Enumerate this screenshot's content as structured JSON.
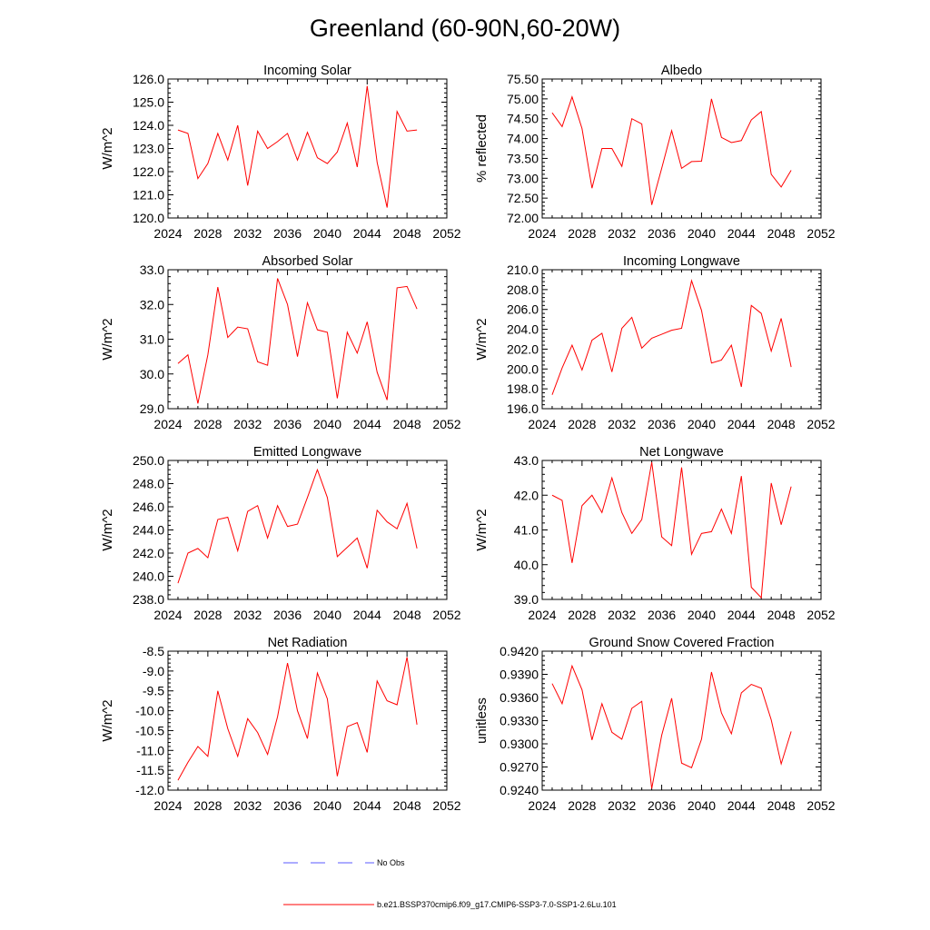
{
  "figure": {
    "title": "Greenland (60-90N,60-20W)"
  },
  "legend": {
    "entries": [
      {
        "label": "No Obs",
        "color": "#5a5aff",
        "style": "dashed"
      },
      {
        "label": "b.e21.BSSP370cmip6.f09_g17.CMIP6-SSP3-7.0-SSP1-2.6Lu.101",
        "color": "#ff0000",
        "style": "solid"
      }
    ]
  },
  "chart_data": [
    {
      "type": "line",
      "title": "Incoming Solar",
      "ylabel": "W/m^2",
      "xlim": [
        2024,
        2052
      ],
      "ylim": [
        120.0,
        126.0
      ],
      "x_ticks": [
        2024,
        2028,
        2032,
        2036,
        2040,
        2044,
        2048,
        2052
      ],
      "y_ticks": [
        "120.0",
        "121.0",
        "122.0",
        "123.0",
        "124.0",
        "125.0",
        "126.0"
      ],
      "series": [
        {
          "color": "#ff0000",
          "x": [
            2025,
            2026,
            2027,
            2028,
            2029,
            2030,
            2031,
            2032,
            2033,
            2034,
            2035,
            2036,
            2037,
            2038,
            2039,
            2040,
            2041,
            2042,
            2043,
            2044,
            2045,
            2046,
            2047,
            2048,
            2049
          ],
          "y": [
            123.8,
            123.65,
            121.7,
            122.35,
            123.65,
            122.5,
            124.0,
            121.4,
            123.75,
            123.0,
            123.3,
            123.65,
            122.5,
            123.7,
            122.6,
            122.35,
            122.85,
            124.1,
            122.2,
            125.7,
            122.4,
            120.45,
            124.6,
            123.75,
            123.8
          ]
        }
      ]
    },
    {
      "type": "line",
      "title": "Albedo",
      "ylabel": "% reflected",
      "xlim": [
        2024,
        2052
      ],
      "ylim": [
        72.0,
        75.5
      ],
      "x_ticks": [
        2024,
        2028,
        2032,
        2036,
        2040,
        2044,
        2048,
        2052
      ],
      "y_ticks": [
        "72.00",
        "72.50",
        "73.00",
        "73.50",
        "74.00",
        "74.50",
        "75.00",
        "75.50"
      ],
      "series": [
        {
          "color": "#ff0000",
          "x": [
            2025,
            2026,
            2027,
            2028,
            2029,
            2030,
            2031,
            2032,
            2033,
            2034,
            2035,
            2036,
            2037,
            2038,
            2039,
            2040,
            2041,
            2042,
            2043,
            2044,
            2045,
            2046,
            2047,
            2048,
            2049
          ],
          "y": [
            74.65,
            74.3,
            75.05,
            74.25,
            72.75,
            73.75,
            73.75,
            73.3,
            74.5,
            74.37,
            72.33,
            73.25,
            74.2,
            73.25,
            73.42,
            73.43,
            75.0,
            74.03,
            73.9,
            73.95,
            74.47,
            74.68,
            73.1,
            72.78,
            73.2
          ]
        }
      ]
    },
    {
      "type": "line",
      "title": "Absorbed Solar",
      "ylabel": "W/m^2",
      "xlim": [
        2024,
        2052
      ],
      "ylim": [
        29.0,
        33.0
      ],
      "x_ticks": [
        2024,
        2028,
        2032,
        2036,
        2040,
        2044,
        2048,
        2052
      ],
      "y_ticks": [
        "29.0",
        "30.0",
        "31.0",
        "32.0",
        "33.0"
      ],
      "series": [
        {
          "color": "#ff0000",
          "x": [
            2025,
            2026,
            2027,
            2028,
            2029,
            2030,
            2031,
            2032,
            2033,
            2034,
            2035,
            2036,
            2037,
            2038,
            2039,
            2040,
            2041,
            2042,
            2043,
            2044,
            2045,
            2046,
            2047,
            2048,
            2049
          ],
          "y": [
            30.3,
            30.55,
            29.15,
            30.55,
            32.5,
            31.05,
            31.35,
            31.3,
            30.35,
            30.25,
            32.75,
            32.0,
            30.5,
            32.05,
            31.27,
            31.2,
            29.3,
            31.2,
            30.6,
            31.5,
            30.05,
            29.25,
            32.48,
            32.52,
            31.87
          ]
        }
      ]
    },
    {
      "type": "line",
      "title": "Incoming Longwave",
      "ylabel": "W/m^2",
      "xlim": [
        2024,
        2052
      ],
      "ylim": [
        196.0,
        210.0
      ],
      "x_ticks": [
        2024,
        2028,
        2032,
        2036,
        2040,
        2044,
        2048,
        2052
      ],
      "y_ticks": [
        "196.0",
        "198.0",
        "200.0",
        "202.0",
        "204.0",
        "206.0",
        "208.0",
        "210.0"
      ],
      "series": [
        {
          "color": "#ff0000",
          "x": [
            2025,
            2026,
            2027,
            2028,
            2029,
            2030,
            2031,
            2032,
            2033,
            2034,
            2035,
            2036,
            2037,
            2038,
            2039,
            2040,
            2041,
            2042,
            2043,
            2044,
            2045,
            2046,
            2047,
            2048,
            2049
          ],
          "y": [
            197.4,
            200.1,
            202.4,
            199.9,
            202.9,
            203.6,
            199.7,
            204.1,
            205.2,
            202.1,
            203.1,
            203.5,
            203.9,
            204.1,
            208.9,
            205.9,
            200.6,
            200.9,
            202.4,
            198.2,
            206.4,
            205.6,
            201.8,
            205.1,
            200.2
          ]
        }
      ]
    },
    {
      "type": "line",
      "title": "Emitted Longwave",
      "ylabel": "W/m^2",
      "xlim": [
        2024,
        2052
      ],
      "ylim": [
        238.0,
        250.0
      ],
      "x_ticks": [
        2024,
        2028,
        2032,
        2036,
        2040,
        2044,
        2048,
        2052
      ],
      "y_ticks": [
        "238.0",
        "240.0",
        "242.0",
        "244.0",
        "246.0",
        "248.0",
        "250.0"
      ],
      "series": [
        {
          "color": "#ff0000",
          "x": [
            2025,
            2026,
            2027,
            2028,
            2029,
            2030,
            2031,
            2032,
            2033,
            2034,
            2035,
            2036,
            2037,
            2038,
            2039,
            2040,
            2041,
            2042,
            2043,
            2044,
            2045,
            2046,
            2047,
            2048,
            2049
          ],
          "y": [
            239.4,
            242.0,
            242.4,
            241.6,
            244.9,
            245.1,
            242.2,
            245.6,
            246.1,
            243.3,
            246.1,
            244.3,
            244.5,
            246.8,
            249.2,
            246.8,
            241.7,
            242.5,
            243.3,
            240.7,
            245.7,
            244.7,
            244.1,
            246.3,
            242.4
          ]
        }
      ]
    },
    {
      "type": "line",
      "title": "Net Longwave",
      "ylabel": "W/m^2",
      "xlim": [
        2024,
        2052
      ],
      "ylim": [
        39.0,
        43.0
      ],
      "x_ticks": [
        2024,
        2028,
        2032,
        2036,
        2040,
        2044,
        2048,
        2052
      ],
      "y_ticks": [
        "39.0",
        "40.0",
        "41.0",
        "42.0",
        "43.0"
      ],
      "series": [
        {
          "color": "#ff0000",
          "x": [
            2025,
            2026,
            2027,
            2028,
            2029,
            2030,
            2031,
            2032,
            2033,
            2034,
            2035,
            2036,
            2037,
            2038,
            2039,
            2040,
            2041,
            2042,
            2043,
            2044,
            2045,
            2046,
            2047,
            2048,
            2049
          ],
          "y": [
            42.0,
            41.85,
            40.05,
            41.7,
            42.0,
            41.5,
            42.5,
            41.5,
            40.9,
            41.3,
            42.95,
            40.8,
            40.55,
            42.8,
            40.3,
            40.9,
            40.95,
            41.6,
            40.9,
            42.55,
            39.35,
            39.05,
            42.35,
            41.15,
            42.25
          ]
        }
      ]
    },
    {
      "type": "line",
      "title": "Net Radiation",
      "ylabel": "W/m^2",
      "xlim": [
        2024,
        2052
      ],
      "ylim": [
        -12.0,
        -8.5
      ],
      "x_ticks": [
        2024,
        2028,
        2032,
        2036,
        2040,
        2044,
        2048,
        2052
      ],
      "y_ticks": [
        "-12.0",
        "-11.5",
        "-11.0",
        "-10.5",
        "-10.0",
        "-9.5",
        "-9.0",
        "-8.5"
      ],
      "series": [
        {
          "color": "#ff0000",
          "x": [
            2025,
            2026,
            2027,
            2028,
            2029,
            2030,
            2031,
            2032,
            2033,
            2034,
            2035,
            2036,
            2037,
            2038,
            2039,
            2040,
            2041,
            2042,
            2043,
            2044,
            2045,
            2046,
            2047,
            2048,
            2049
          ],
          "y": [
            -11.75,
            -11.3,
            -10.9,
            -11.15,
            -9.5,
            -10.45,
            -11.15,
            -10.2,
            -10.55,
            -11.1,
            -10.15,
            -8.8,
            -10.0,
            -10.7,
            -9.05,
            -9.7,
            -11.65,
            -10.4,
            -10.3,
            -11.05,
            -9.25,
            -9.75,
            -9.85,
            -8.65,
            -10.35
          ]
        }
      ]
    },
    {
      "type": "line",
      "title": "Ground Snow Covered Fraction",
      "ylabel": "unitless",
      "xlim": [
        2024,
        2052
      ],
      "ylim": [
        0.924,
        0.942
      ],
      "x_ticks": [
        2024,
        2028,
        2032,
        2036,
        2040,
        2044,
        2048,
        2052
      ],
      "y_ticks": [
        "0.9240",
        "0.9270",
        "0.9300",
        "0.9330",
        "0.9360",
        "0.9390",
        "0.9420"
      ],
      "series": [
        {
          "color": "#ff0000",
          "x": [
            2025,
            2026,
            2027,
            2028,
            2029,
            2030,
            2031,
            2032,
            2033,
            2034,
            2035,
            2036,
            2037,
            2038,
            2039,
            2040,
            2041,
            2042,
            2043,
            2044,
            2045,
            2046,
            2047,
            2048,
            2049
          ],
          "y": [
            0.9378,
            0.9352,
            0.9401,
            0.937,
            0.9305,
            0.9352,
            0.9315,
            0.9306,
            0.9346,
            0.9355,
            0.9242,
            0.9311,
            0.9359,
            0.9275,
            0.9269,
            0.9306,
            0.9393,
            0.934,
            0.9313,
            0.9366,
            0.9377,
            0.9372,
            0.9331,
            0.9274,
            0.9316
          ]
        }
      ]
    }
  ]
}
